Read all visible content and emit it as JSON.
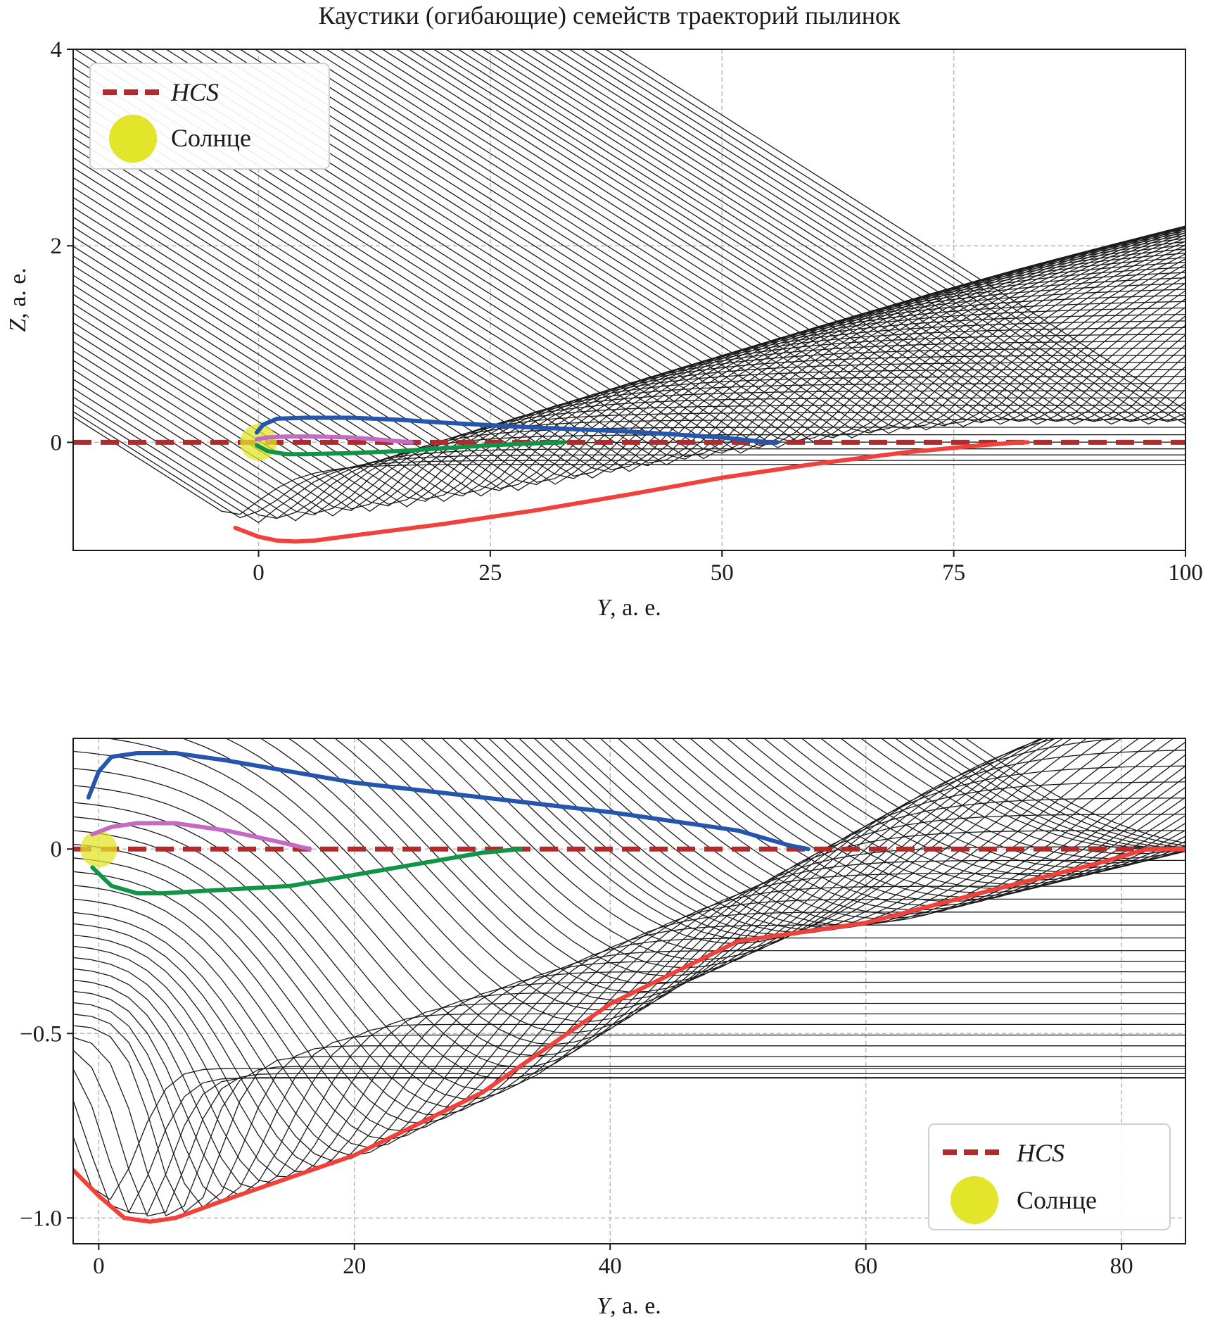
{
  "figure": {
    "title": "Каустики (огибающие) семейств траекторий пылинок"
  },
  "legend": {
    "hcs_label": "HCS",
    "sun_label": "Солнце"
  },
  "colors": {
    "hcs": "#b22a2a",
    "sun": "#e3e52a",
    "trajectory": "#1a1a1a",
    "caustic_red": "#f0413a",
    "caustic_blue": "#2456ad",
    "caustic_green": "#119447",
    "caustic_pink": "#c46ac2",
    "grid": "#b8b8b8"
  },
  "chart_data": [
    {
      "type": "line",
      "panel": "top",
      "xlabel_var": "Y",
      "xlabel_unit": ", a. e.",
      "ylabel_var": "Z",
      "ylabel_unit": ", a. e.",
      "xlim": [
        -20,
        100
      ],
      "ylim": [
        -1.1,
        4
      ],
      "xticks": [
        0,
        25,
        50,
        75,
        100
      ],
      "xtick_labels": [
        "0",
        "25",
        "50",
        "75",
        "100"
      ],
      "yticks": [
        0,
        2,
        4
      ],
      "ytick_labels": [
        "0",
        "2",
        "4"
      ],
      "grid": true,
      "legend_position": "top-left",
      "hcs_z": 0,
      "sun": {
        "x": 0,
        "y": 0
      },
      "trajectory_family": {
        "count": 80,
        "color": "trajectory"
      },
      "series": [
        {
          "key": "red",
          "x": [
            -2.5,
            0,
            2,
            4,
            6,
            10,
            20,
            30,
            40,
            50,
            60,
            70,
            78,
            82,
            83
          ],
          "y": [
            -0.87,
            -0.96,
            -1.0,
            -1.01,
            -1.0,
            -0.95,
            -0.83,
            -0.69,
            -0.53,
            -0.36,
            -0.22,
            -0.1,
            -0.03,
            0.0,
            0.0
          ]
        },
        {
          "key": "blue",
          "x": [
            -0.2,
            0.5,
            2,
            5,
            10,
            15,
            20,
            30,
            40,
            50,
            55,
            56
          ],
          "y": [
            0.1,
            0.18,
            0.24,
            0.25,
            0.25,
            0.23,
            0.2,
            0.15,
            0.11,
            0.05,
            0.0,
            0.0
          ]
        },
        {
          "key": "green",
          "x": [
            -0.2,
            1,
            3,
            5,
            10,
            15,
            20,
            25,
            30,
            33
          ],
          "y": [
            -0.03,
            -0.09,
            -0.12,
            -0.12,
            -0.11,
            -0.09,
            -0.06,
            -0.03,
            -0.01,
            0.0
          ]
        },
        {
          "key": "pink",
          "x": [
            -0.2,
            1,
            3,
            6,
            10,
            14,
            16.5
          ],
          "y": [
            0.03,
            0.05,
            0.06,
            0.06,
            0.05,
            0.02,
            0.0
          ]
        }
      ]
    },
    {
      "type": "line",
      "panel": "bottom",
      "xlabel_var": "Y",
      "xlabel_unit": ", a. e.",
      "ylabel_var": "",
      "ylabel_unit": "",
      "xlim": [
        -2,
        85
      ],
      "ylim": [
        -1.07,
        0.3
      ],
      "xticks": [
        0,
        20,
        40,
        60,
        80
      ],
      "xtick_labels": [
        "0",
        "20",
        "40",
        "60",
        "80"
      ],
      "yticks": [
        -1.0,
        -0.5,
        0
      ],
      "ytick_labels": [
        "−1.0",
        "−0.5",
        "0"
      ],
      "grid": true,
      "legend_position": "bottom-right",
      "hcs_z": 0,
      "sun": {
        "x": 0,
        "y": 0
      },
      "trajectory_family": {
        "count": 70,
        "color": "trajectory"
      },
      "series": [
        {
          "key": "red",
          "x": [
            -2,
            0,
            2,
            4,
            6,
            10,
            20,
            30,
            40,
            50,
            60,
            70,
            78,
            82,
            85
          ],
          "y": [
            -0.87,
            -0.94,
            -1.0,
            -1.01,
            -1.0,
            -0.95,
            -0.83,
            -0.66,
            -0.42,
            -0.25,
            -0.2,
            -0.11,
            -0.04,
            0.0,
            0.0
          ]
        },
        {
          "key": "blue",
          "x": [
            -0.8,
            0,
            1,
            3,
            6,
            10,
            20,
            30,
            40,
            50,
            54,
            55.5
          ],
          "y": [
            0.14,
            0.21,
            0.25,
            0.26,
            0.26,
            0.24,
            0.18,
            0.14,
            0.1,
            0.05,
            0.01,
            0.0
          ]
        },
        {
          "key": "green",
          "x": [
            -0.5,
            1,
            3,
            5,
            10,
            15,
            20,
            25,
            30,
            33
          ],
          "y": [
            -0.05,
            -0.1,
            -0.12,
            -0.12,
            -0.11,
            -0.1,
            -0.07,
            -0.04,
            -0.01,
            0.0
          ]
        },
        {
          "key": "pink",
          "x": [
            -0.5,
            1,
            3,
            6,
            10,
            14,
            16.5
          ],
          "y": [
            0.04,
            0.06,
            0.07,
            0.07,
            0.05,
            0.02,
            0.0
          ]
        }
      ]
    }
  ]
}
